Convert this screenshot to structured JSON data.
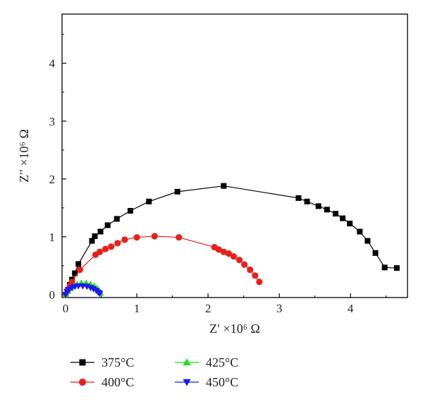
{
  "chart_data": {
    "type": "scatter",
    "xlabel": "Z′ ×10⁶ Ω",
    "ylabel": "Z′′ ×10⁶ Ω",
    "xlim": [
      -0.05,
      4.8
    ],
    "ylim": [
      -0.05,
      4.85
    ],
    "xticks": [
      "0",
      "1",
      "2",
      "3",
      "4"
    ],
    "xtick_values": [
      0,
      1,
      2,
      3,
      4
    ],
    "yticks": [
      "0",
      "1",
      "2",
      "3",
      "4"
    ],
    "ytick_values": [
      0,
      1,
      2,
      3,
      4
    ],
    "legend_position": "bottom",
    "series": [
      {
        "name": "375°C",
        "color": "#000000",
        "marker": "square",
        "x": [
          0.0,
          0.03,
          0.06,
          0.09,
          0.13,
          0.18,
          0.37,
          0.41,
          0.49,
          0.59,
          0.72,
          0.91,
          1.17,
          1.57,
          2.22,
          3.27,
          3.39,
          3.55,
          3.67,
          3.79,
          3.89,
          3.99,
          4.13,
          4.24,
          4.35,
          4.48,
          4.65
        ],
        "y": [
          0.0,
          0.08,
          0.17,
          0.26,
          0.37,
          0.53,
          0.93,
          1.01,
          1.09,
          1.2,
          1.31,
          1.45,
          1.61,
          1.78,
          1.88,
          1.67,
          1.61,
          1.53,
          1.47,
          1.4,
          1.32,
          1.23,
          1.09,
          0.93,
          0.72,
          0.47,
          0.46
        ]
      },
      {
        "name": "400°C",
        "color": "#e8201c",
        "marker": "circle",
        "x": [
          0.0,
          0.03,
          0.06,
          0.09,
          0.2,
          0.42,
          0.48,
          0.56,
          0.64,
          0.73,
          0.83,
          1.0,
          1.25,
          1.59,
          2.09,
          2.15,
          2.22,
          2.29,
          2.36,
          2.44,
          2.51,
          2.59,
          2.66,
          2.72
        ],
        "y": [
          0.0,
          0.08,
          0.15,
          0.22,
          0.43,
          0.69,
          0.74,
          0.79,
          0.83,
          0.89,
          0.95,
          0.99,
          1.01,
          0.99,
          0.82,
          0.78,
          0.74,
          0.71,
          0.66,
          0.6,
          0.52,
          0.43,
          0.33,
          0.22
        ]
      },
      {
        "name": "425°C",
        "color": "#22dd22",
        "marker": "triangle-up",
        "x": [
          0.0,
          0.03,
          0.07,
          0.11,
          0.16,
          0.22,
          0.29,
          0.35,
          0.4,
          0.44,
          0.47,
          0.49
        ],
        "y": [
          0.0,
          0.06,
          0.11,
          0.15,
          0.18,
          0.2,
          0.2,
          0.18,
          0.15,
          0.11,
          0.07,
          0.03
        ]
      },
      {
        "name": "450°C",
        "color": "#1a1aee",
        "marker": "triangle-down",
        "x": [
          0.0,
          0.02,
          0.05,
          0.09,
          0.13,
          0.18,
          0.24,
          0.3,
          0.35,
          0.39,
          0.43,
          0.46,
          0.48
        ],
        "y": [
          0.0,
          0.05,
          0.09,
          0.12,
          0.14,
          0.15,
          0.15,
          0.14,
          0.12,
          0.1,
          0.07,
          0.04,
          0.02
        ]
      }
    ]
  }
}
